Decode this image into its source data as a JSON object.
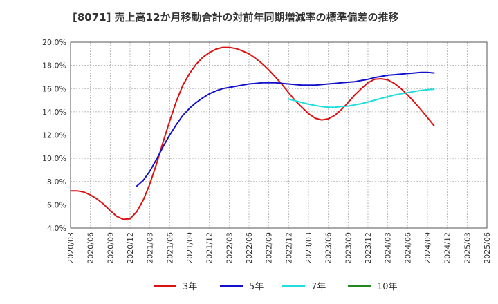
{
  "chart_data": {
    "type": "line",
    "title": "[8071]  売上高12か月移動合計の対前年同期増減率の標準偏差の推移",
    "xlabel": "",
    "ylabel": "",
    "ylim": [
      4.0,
      20.0
    ],
    "yticks": [
      "4.0%",
      "6.0%",
      "8.0%",
      "10.0%",
      "12.0%",
      "14.0%",
      "16.0%",
      "18.0%",
      "20.0%"
    ],
    "xticks": [
      "2020/03",
      "2020/06",
      "2020/09",
      "2020/12",
      "2021/03",
      "2021/06",
      "2021/09",
      "2021/12",
      "2022/03",
      "2022/06",
      "2022/09",
      "2022/12",
      "2023/03",
      "2023/06",
      "2023/09",
      "2023/12",
      "2024/03",
      "2024/06",
      "2024/09",
      "2024/12",
      "2025/03",
      "2025/06"
    ],
    "grid": true,
    "legend_position": "bottom",
    "series": [
      {
        "name": "3年",
        "color": "#dd1111",
        "points": [
          [
            "2020/03",
            7.2
          ],
          [
            "2020/04",
            7.2
          ],
          [
            "2020/05",
            7.1
          ],
          [
            "2020/06",
            6.85
          ],
          [
            "2020/07",
            6.5
          ],
          [
            "2020/08",
            6.05
          ],
          [
            "2020/09",
            5.5
          ],
          [
            "2020/10",
            5.0
          ],
          [
            "2020/11",
            4.75
          ],
          [
            "2020/12",
            4.8
          ],
          [
            "2021/01",
            5.4
          ],
          [
            "2021/02",
            6.4
          ],
          [
            "2021/03",
            7.8
          ],
          [
            "2021/04",
            9.5
          ],
          [
            "2021/05",
            11.4
          ],
          [
            "2021/06",
            13.2
          ],
          [
            "2021/07",
            14.9
          ],
          [
            "2021/08",
            16.3
          ],
          [
            "2021/09",
            17.3
          ],
          [
            "2021/10",
            18.1
          ],
          [
            "2021/11",
            18.7
          ],
          [
            "2021/12",
            19.1
          ],
          [
            "2022/01",
            19.4
          ],
          [
            "2022/02",
            19.55
          ],
          [
            "2022/03",
            19.55
          ],
          [
            "2022/04",
            19.45
          ],
          [
            "2022/05",
            19.25
          ],
          [
            "2022/06",
            19.0
          ],
          [
            "2022/07",
            18.6
          ],
          [
            "2022/08",
            18.15
          ],
          [
            "2022/09",
            17.6
          ],
          [
            "2022/10",
            17.0
          ],
          [
            "2022/11",
            16.35
          ],
          [
            "2022/12",
            15.65
          ],
          [
            "2023/01",
            14.95
          ],
          [
            "2023/02",
            14.4
          ],
          [
            "2023/03",
            13.85
          ],
          [
            "2023/04",
            13.45
          ],
          [
            "2023/05",
            13.3
          ],
          [
            "2023/06",
            13.4
          ],
          [
            "2023/07",
            13.7
          ],
          [
            "2023/08",
            14.2
          ],
          [
            "2023/09",
            14.8
          ],
          [
            "2023/10",
            15.45
          ],
          [
            "2023/11",
            16.0
          ],
          [
            "2023/12",
            16.5
          ],
          [
            "2024/01",
            16.8
          ],
          [
            "2024/02",
            16.85
          ],
          [
            "2024/03",
            16.75
          ],
          [
            "2024/04",
            16.45
          ],
          [
            "2024/05",
            16.0
          ],
          [
            "2024/06",
            15.45
          ],
          [
            "2024/07",
            14.85
          ],
          [
            "2024/08",
            14.2
          ],
          [
            "2024/09",
            13.5
          ],
          [
            "2024/10",
            12.8
          ]
        ]
      },
      {
        "name": "5年",
        "color": "#1111cc",
        "points": [
          [
            "2021/01",
            7.6
          ],
          [
            "2021/02",
            8.1
          ],
          [
            "2021/03",
            8.9
          ],
          [
            "2021/04",
            9.9
          ],
          [
            "2021/05",
            11.0
          ],
          [
            "2021/06",
            12.0
          ],
          [
            "2021/07",
            12.9
          ],
          [
            "2021/08",
            13.7
          ],
          [
            "2021/09",
            14.3
          ],
          [
            "2021/10",
            14.8
          ],
          [
            "2021/11",
            15.2
          ],
          [
            "2021/12",
            15.55
          ],
          [
            "2022/01",
            15.8
          ],
          [
            "2022/02",
            16.0
          ],
          [
            "2022/03",
            16.1
          ],
          [
            "2022/04",
            16.2
          ],
          [
            "2022/05",
            16.3
          ],
          [
            "2022/06",
            16.4
          ],
          [
            "2022/07",
            16.45
          ],
          [
            "2022/08",
            16.5
          ],
          [
            "2022/09",
            16.5
          ],
          [
            "2022/10",
            16.5
          ],
          [
            "2022/11",
            16.45
          ],
          [
            "2022/12",
            16.4
          ],
          [
            "2023/01",
            16.35
          ],
          [
            "2023/02",
            16.3
          ],
          [
            "2023/03",
            16.3
          ],
          [
            "2023/04",
            16.3
          ],
          [
            "2023/05",
            16.35
          ],
          [
            "2023/06",
            16.4
          ],
          [
            "2023/07",
            16.45
          ],
          [
            "2023/08",
            16.5
          ],
          [
            "2023/09",
            16.55
          ],
          [
            "2023/10",
            16.6
          ],
          [
            "2023/11",
            16.7
          ],
          [
            "2023/12",
            16.8
          ],
          [
            "2024/01",
            16.95
          ],
          [
            "2024/02",
            17.05
          ],
          [
            "2024/03",
            17.15
          ],
          [
            "2024/04",
            17.2
          ],
          [
            "2024/05",
            17.25
          ],
          [
            "2024/06",
            17.3
          ],
          [
            "2024/07",
            17.35
          ],
          [
            "2024/08",
            17.4
          ],
          [
            "2024/09",
            17.4
          ],
          [
            "2024/10",
            17.35
          ]
        ]
      },
      {
        "name": "7年",
        "color": "#22dddd",
        "points": [
          [
            "2022/12",
            15.1
          ],
          [
            "2023/01",
            14.95
          ],
          [
            "2023/02",
            14.8
          ],
          [
            "2023/03",
            14.65
          ],
          [
            "2023/04",
            14.55
          ],
          [
            "2023/05",
            14.45
          ],
          [
            "2023/06",
            14.4
          ],
          [
            "2023/07",
            14.4
          ],
          [
            "2023/08",
            14.45
          ],
          [
            "2023/09",
            14.5
          ],
          [
            "2023/10",
            14.6
          ],
          [
            "2023/11",
            14.7
          ],
          [
            "2023/12",
            14.85
          ],
          [
            "2024/01",
            15.0
          ],
          [
            "2024/02",
            15.15
          ],
          [
            "2024/03",
            15.3
          ],
          [
            "2024/04",
            15.45
          ],
          [
            "2024/05",
            15.55
          ],
          [
            "2024/06",
            15.65
          ],
          [
            "2024/07",
            15.75
          ],
          [
            "2024/08",
            15.85
          ],
          [
            "2024/09",
            15.9
          ],
          [
            "2024/10",
            15.95
          ]
        ]
      },
      {
        "name": "10年",
        "color": "#228822",
        "points": []
      }
    ]
  }
}
